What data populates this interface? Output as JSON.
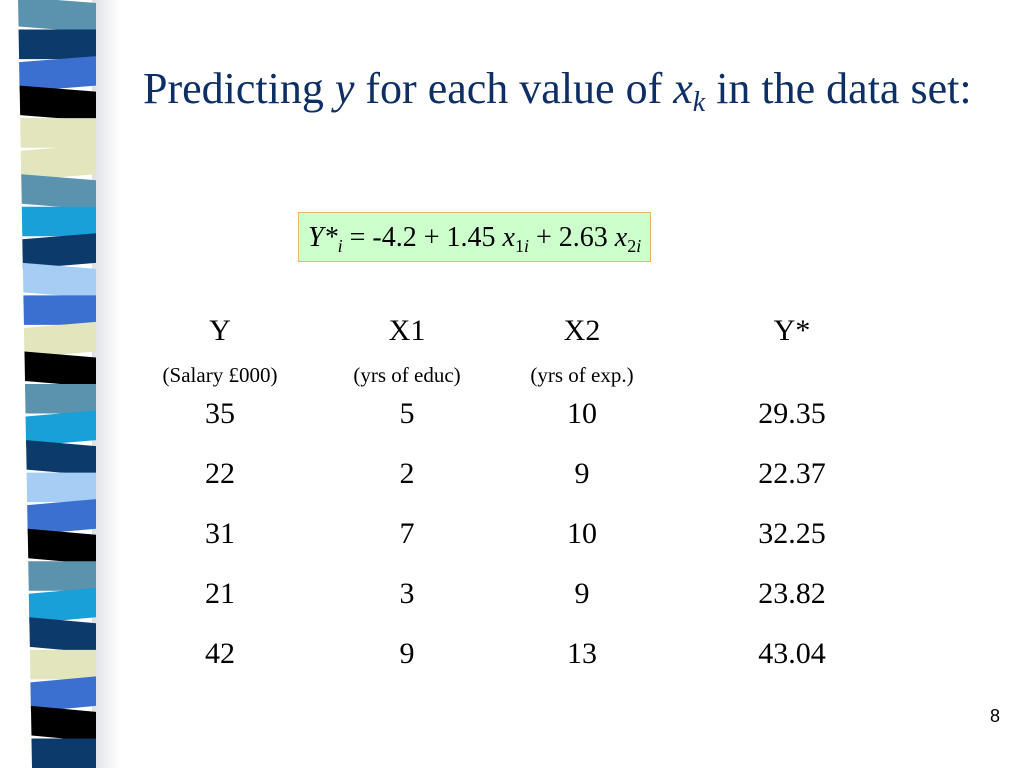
{
  "title": {
    "part1": "Predicting ",
    "var_y": "y",
    "part2": " for each value of ",
    "var_x": "x",
    "sub_k": "k",
    "part3": " in the data set:"
  },
  "formula": {
    "lhs_var": "Y*",
    "lhs_sub": "i",
    "mid": " = -4.2 + 1.45 ",
    "x1_var": "x",
    "x1_sub_num": "1",
    "x1_sub_i": "i",
    "mid2": " + 2.63 ",
    "x2_var": "x",
    "x2_sub_num": "2",
    "x2_sub_i": "i"
  },
  "table": {
    "headers": [
      "Y",
      "X1",
      "X2",
      "Y*"
    ],
    "subheaders": [
      "(Salary £000)",
      "(yrs of educ)",
      "(yrs of exp.)",
      ""
    ],
    "rows": [
      [
        "35",
        "5",
        "10",
        "29.35"
      ],
      [
        "22",
        "2",
        "9",
        "22.37"
      ],
      [
        "31",
        "7",
        "10",
        "32.25"
      ],
      [
        "21",
        "3",
        "9",
        "23.82"
      ],
      [
        "42",
        "9",
        "13",
        "43.04"
      ]
    ]
  },
  "page_number": "8",
  "colors": {
    "title": "#0d2f66",
    "formula_bg": "#ccffcc",
    "formula_border": "#f0b45a",
    "stripe_palette": [
      "#5b92ad",
      "#0c3a6a",
      "#3b6fd0",
      "#000000",
      "#e3e5bd",
      "#19a0d8",
      "#a6cdf3"
    ]
  }
}
